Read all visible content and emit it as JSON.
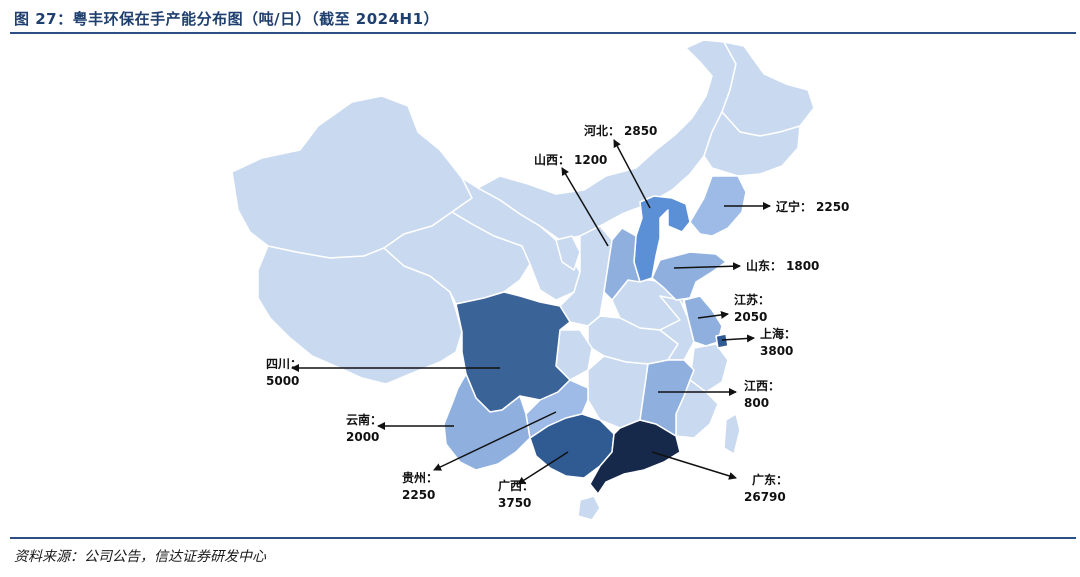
{
  "title": "图 27：粤丰环保在手产能分布图（吨/日）（截至 2024H1）",
  "source": "资料来源：公司公告，信达证券研发中心",
  "colors": {
    "base": "#c8d9f0",
    "border": "#ffffff",
    "low": "#9dbbe6",
    "mid": "#8fb0df",
    "strong": "#5b8fd6",
    "dark": "#3a6398",
    "darker": "#2f5a92",
    "darkest": "#17294a",
    "accent": "#1f3f6e"
  },
  "provinces": [
    {
      "name": "四川",
      "label": "四川：",
      "value": "5000",
      "tier": "dark"
    },
    {
      "name": "云南",
      "label": "云南：",
      "value": "2000",
      "tier": "mid"
    },
    {
      "name": "贵州",
      "label": "贵州：",
      "value": "2250",
      "tier": "low"
    },
    {
      "name": "广西",
      "label": "广西：",
      "value": "3750",
      "tier": "darker"
    },
    {
      "name": "广东",
      "label": "广东：",
      "value": "26790",
      "tier": "darkest"
    },
    {
      "name": "江西",
      "label": "江西：",
      "value": "800",
      "tier": "mid"
    },
    {
      "name": "上海",
      "label": "上海：",
      "value": "3800",
      "tier": "darker"
    },
    {
      "name": "江苏",
      "label": "江苏：",
      "value": "2050",
      "tier": "mid"
    },
    {
      "name": "山东",
      "label": "山东：",
      "value": "1800",
      "tier": "mid"
    },
    {
      "name": "辽宁",
      "label": "辽宁：",
      "value": "2250",
      "tier": "low"
    },
    {
      "name": "河北",
      "label": "河北：",
      "value": "2850",
      "tier": "strong"
    },
    {
      "name": "山西",
      "label": "山西：",
      "value": "1200",
      "tier": "mid"
    }
  ]
}
